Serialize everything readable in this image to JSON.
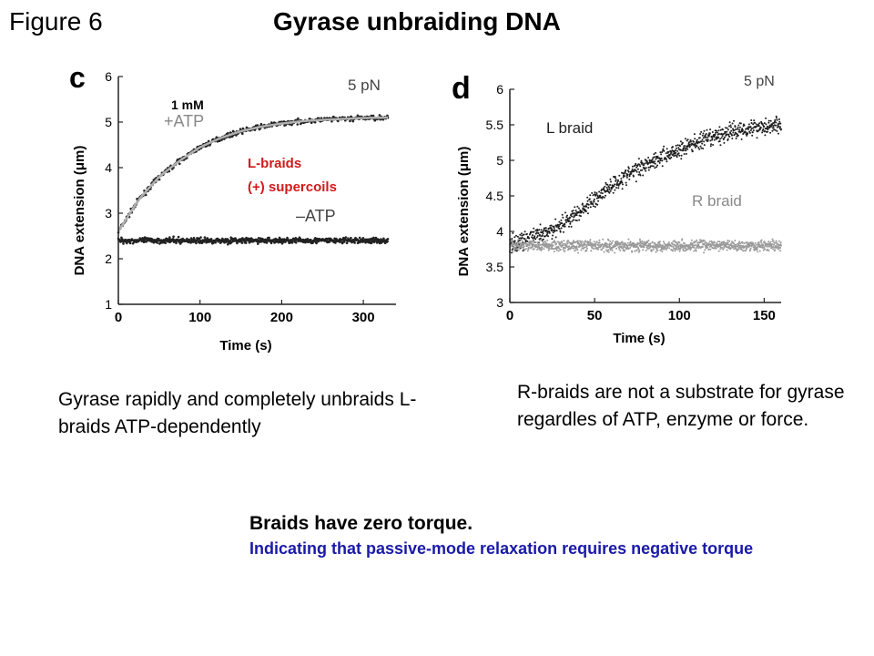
{
  "figure_label": "Figure 6",
  "figure_title": "Gyrase unbraiding DNA",
  "chart_data": [
    {
      "type": "scatter",
      "panel": "c",
      "xlabel": "Time (s)",
      "ylabel": "DNA extension (μm)",
      "xlim": [
        0,
        340
      ],
      "ylim": [
        1,
        6
      ],
      "xticks": [
        0,
        100,
        200,
        300
      ],
      "yticks": [
        1,
        2,
        3,
        4,
        5,
        6
      ],
      "force_label": "5 pN",
      "annotations": {
        "concentration": "1 mM",
        "braid_label_line1": "L-braids",
        "braid_label_line2": "(+) supercoils",
        "braid_label_color": "#d11a1a"
      },
      "grid": false,
      "series": [
        {
          "name": "+ATP",
          "color": "#222222",
          "fit_color": "#b0b0b0",
          "x": [
            0,
            25,
            50,
            75,
            100,
            125,
            150,
            175,
            200,
            225,
            250,
            275,
            300,
            330
          ],
          "y": [
            2.6,
            3.3,
            3.8,
            4.15,
            4.45,
            4.65,
            4.8,
            4.9,
            4.97,
            5.02,
            5.05,
            5.07,
            5.09,
            5.1
          ]
        },
        {
          "name": "–ATP",
          "color": "#222222",
          "x": [
            0,
            50,
            100,
            150,
            200,
            250,
            300,
            330
          ],
          "y": [
            2.4,
            2.4,
            2.4,
            2.4,
            2.4,
            2.4,
            2.4,
            2.4
          ]
        }
      ]
    },
    {
      "type": "scatter",
      "panel": "d",
      "xlabel": "Time (s)",
      "ylabel": "DNA extension (μm)",
      "xlim": [
        0,
        160
      ],
      "ylim": [
        3,
        6
      ],
      "xticks": [
        0,
        50,
        100,
        150
      ],
      "yticks": [
        3,
        3.5,
        4,
        4.5,
        5,
        5.5,
        6
      ],
      "force_label": "5 pN",
      "grid": false,
      "series": [
        {
          "name": "L braid",
          "color": "#1e1e1e",
          "x": [
            0,
            10,
            20,
            30,
            40,
            50,
            60,
            70,
            80,
            90,
            100,
            110,
            120,
            130,
            140,
            150,
            160
          ],
          "y": [
            3.8,
            3.9,
            3.95,
            4.1,
            4.25,
            4.45,
            4.65,
            4.8,
            4.95,
            5.05,
            5.15,
            5.25,
            5.32,
            5.4,
            5.45,
            5.48,
            5.5
          ]
        },
        {
          "name": "R braid",
          "color": "#9a9a9a",
          "x": [
            0,
            40,
            80,
            120,
            160
          ],
          "y": [
            3.8,
            3.8,
            3.8,
            3.8,
            3.8
          ]
        }
      ]
    }
  ],
  "caption_c": "Gyrase rapidly and completely unbraids L-braids ATP-dependently",
  "caption_d": "R-braids are not a substrate for gyrase regardles of ATP, enzyme or force.",
  "conclusion": {
    "headline": "Braids have zero torque.",
    "detail": "Indicating that passive-mode relaxation requires negative torque",
    "detail_color": "#1a1aa8"
  }
}
